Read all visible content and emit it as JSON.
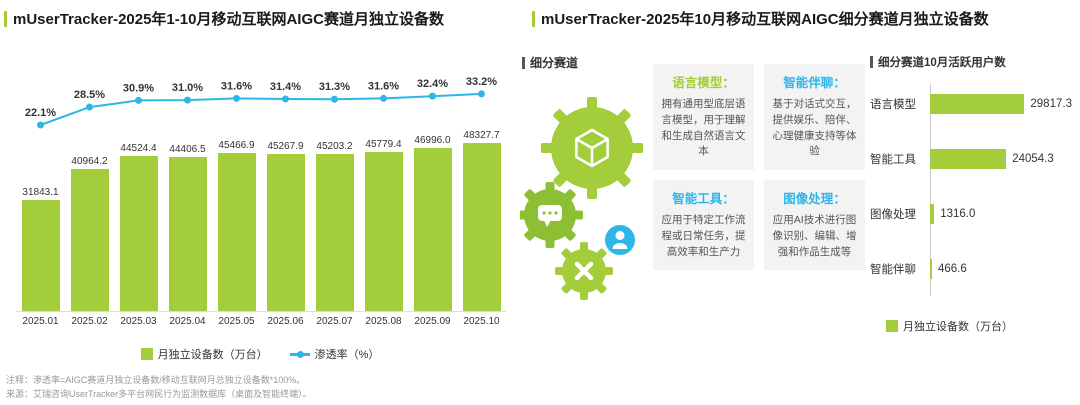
{
  "colors": {
    "green": "#a3cd3a",
    "dark_green": "#8cbf33",
    "blue": "#2fb6e9",
    "text": "#333333"
  },
  "left_panel": {
    "title": "mUserTracker-2025年1-10月移动互联网AIGC赛道月独立设备数",
    "legend": {
      "bars": "月独立设备数（万台）",
      "line": "渗透率（%）"
    },
    "notes": [
      "注释：渗透率=AIGC赛道月独立设备数/移动互联网月总独立设备数*100%。",
      "来源：艾瑞咨询UserTracker多平台网民行为监测数据库（桌面及智能终端）。"
    ]
  },
  "right_panel": {
    "title": "mUserTracker-2025年10月移动互联网AIGC细分赛道月独立设备数",
    "section_label": "细分赛道",
    "hchart_label": "细分赛道10月活跃用户数",
    "cards": [
      {
        "title": "语言模型：",
        "color": "green",
        "body": "拥有通用型底层语言模型，用于理解和生成自然语言文本"
      },
      {
        "title": "智能伴聊：",
        "color": "blue",
        "body": "基于对话式交互，提供娱乐、陪伴、心理健康支持等体验"
      },
      {
        "title": "智能工具：",
        "color": "blue",
        "body": "应用于特定工作流程或日常任务，提高效率和生产力"
      },
      {
        "title": "图像处理：",
        "color": "blue",
        "body": "应用AI技术进行图像识别、编辑、增强和作品生成等"
      }
    ],
    "legend": "月独立设备数（万台）"
  },
  "chart_data": [
    {
      "type": "bar",
      "subtype": "bar+line combo",
      "title": "mUserTracker-2025年1-10月移动互联网AIGC赛道月独立设备数",
      "categories": [
        "2025.01",
        "2025.02",
        "2025.03",
        "2025.04",
        "2025.05",
        "2025.06",
        "2025.07",
        "2025.08",
        "2025.09",
        "2025.10"
      ],
      "series": [
        {
          "name": "月独立设备数（万台）",
          "type": "bar",
          "color": "#a3cd3a",
          "values": [
            31843.1,
            40964.2,
            44524.4,
            44406.5,
            45466.9,
            45267.9,
            45203.2,
            45779.4,
            46996.0,
            48327.7
          ]
        },
        {
          "name": "渗透率（%）",
          "type": "line",
          "color": "#2fb6e9",
          "values": [
            22.1,
            28.5,
            30.9,
            31.0,
            31.6,
            31.4,
            31.3,
            31.6,
            32.4,
            33.2
          ]
        }
      ],
      "xlabel": "",
      "ylabel": "",
      "grid": false,
      "legend_position": "bottom"
    },
    {
      "type": "bar",
      "orientation": "horizontal",
      "title": "细分赛道10月活跃用户数",
      "categories": [
        "语言模型",
        "智能工具",
        "图像处理",
        "智能伴聊"
      ],
      "values": [
        29817.3,
        24054.3,
        1316.0,
        466.6
      ],
      "series_name": "月独立设备数（万台）",
      "bar_color": "#a3cd3a",
      "xlim": [
        0,
        30000
      ],
      "grid": false,
      "legend_position": "bottom"
    }
  ]
}
